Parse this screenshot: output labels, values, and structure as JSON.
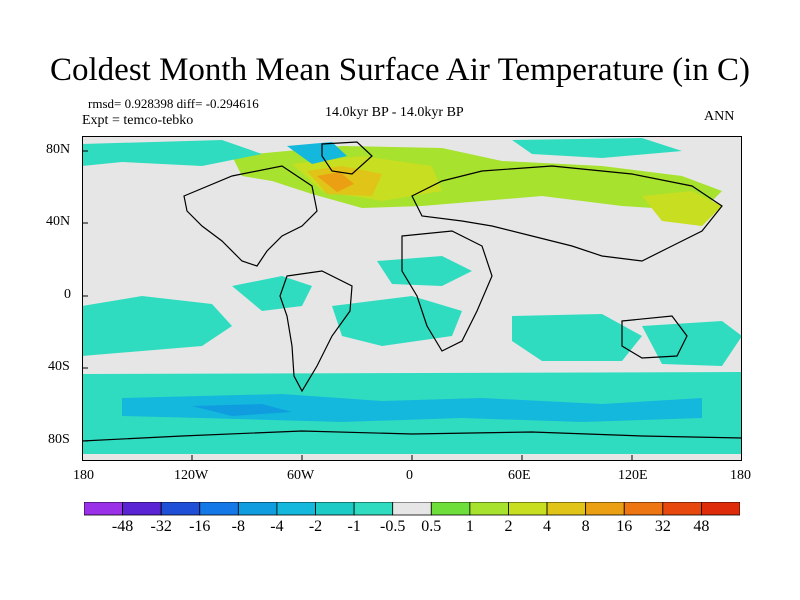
{
  "title": "Coldest Month Mean Surface Air Temperature (in C)",
  "stats": {
    "rmsd": "rmsd= 0.928398 diff= -0.294616",
    "expt": "Expt = temco-tebko",
    "period": "14.0kyr BP - 14.0kyr BP",
    "season": "ANN"
  },
  "axes": {
    "lon_labels": [
      "180",
      "120W",
      "60W",
      "0",
      "60E",
      "120E",
      "180"
    ],
    "lat_labels": [
      "80N",
      "40N",
      "0",
      "40S",
      "80S"
    ]
  },
  "colorbar": {
    "labels": [
      "-48",
      "-32",
      "-16",
      "-8",
      "-4",
      "-2",
      "-1",
      "-0.5",
      "0.5",
      "1",
      "2",
      "4",
      "8",
      "16",
      "32",
      "48"
    ],
    "colors": [
      "#9a30e8",
      "#5a24d4",
      "#1e4fd6",
      "#1478e6",
      "#0f9de0",
      "#14b8dc",
      "#1dcbc6",
      "#30dcc0",
      "#e6e6e6",
      "#6ede3a",
      "#a6e22e",
      "#c8de20",
      "#e0c418",
      "#eba014",
      "#ee7612",
      "#e6480e",
      "#de2c0a"
    ]
  },
  "map_colors": {
    "ocean_neutral": "#e6e6e6",
    "cool_light": "#30dcc0",
    "cool_medium": "#14b8dc",
    "cool_strong": "#0f9de0",
    "warm_light": "#a6e22e",
    "warm_medium": "#c8de20",
    "warm_strong": "#e0c418",
    "warm_peak": "#eba014"
  }
}
